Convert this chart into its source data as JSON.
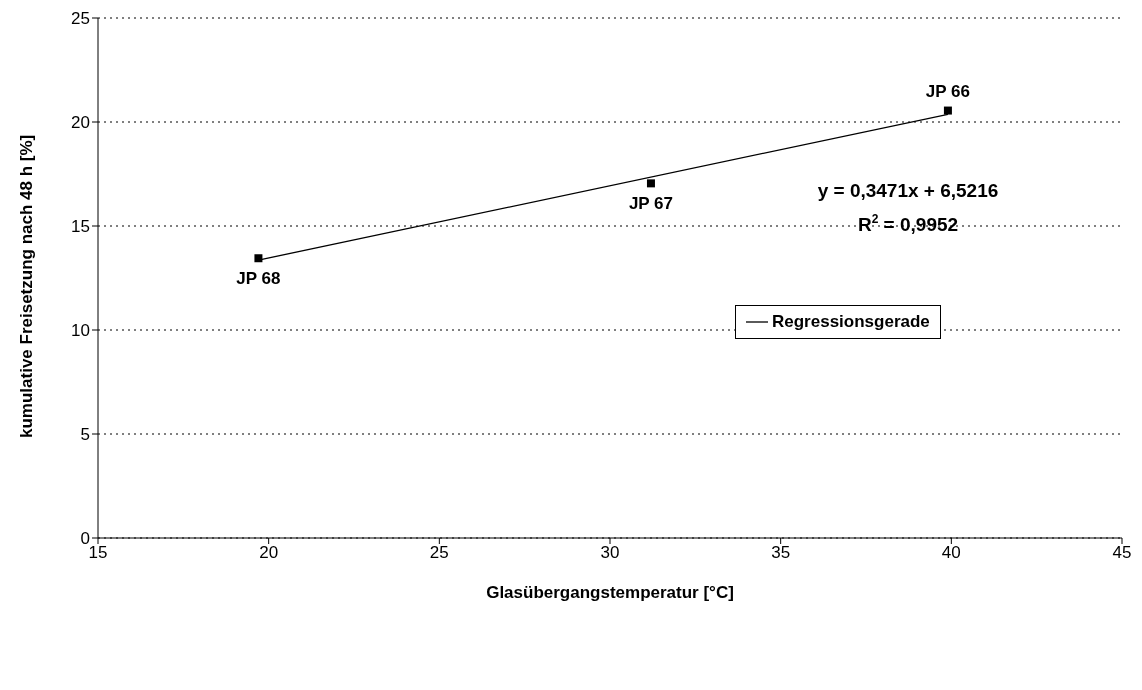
{
  "chart_data": {
    "type": "scatter",
    "xlabel": "Glasübergangstemperatur [°C]",
    "ylabel": "kumulative Freisetzung nach 48 h [%]",
    "series": [
      {
        "color": "#000000",
        "marker": "square",
        "x": [
          19.7,
          31.2,
          39.9
        ],
        "values": [
          13.45,
          17.05,
          20.55
        ]
      },
      {
        "type": "line",
        "name": "Regressionsgerade",
        "color": "#000000",
        "marker": "none",
        "line_style": "solid",
        "x": [
          19.7,
          39.9
        ],
        "values": [
          13.36,
          20.37
        ]
      }
    ],
    "annotations": [
      {
        "text": "JP 68",
        "x": 19.7,
        "y": 13.45
      },
      {
        "text": "JP 67",
        "x": 31.2,
        "y": 17.05
      },
      {
        "text": "JP 66",
        "x": 39.9,
        "y": 20.55
      },
      "y = 0,3471x + 6,5216",
      "R$^{2}$ = 0,9952"
    ],
    "xlim": [
      15,
      45
    ],
    "xticks": [
      15,
      20,
      25,
      30,
      35,
      40,
      45
    ],
    "ylim": [
      0,
      25
    ],
    "yticks": [
      0,
      5,
      10,
      15,
      20,
      25
    ],
    "grid": "y",
    "legend": "right"
  }
}
